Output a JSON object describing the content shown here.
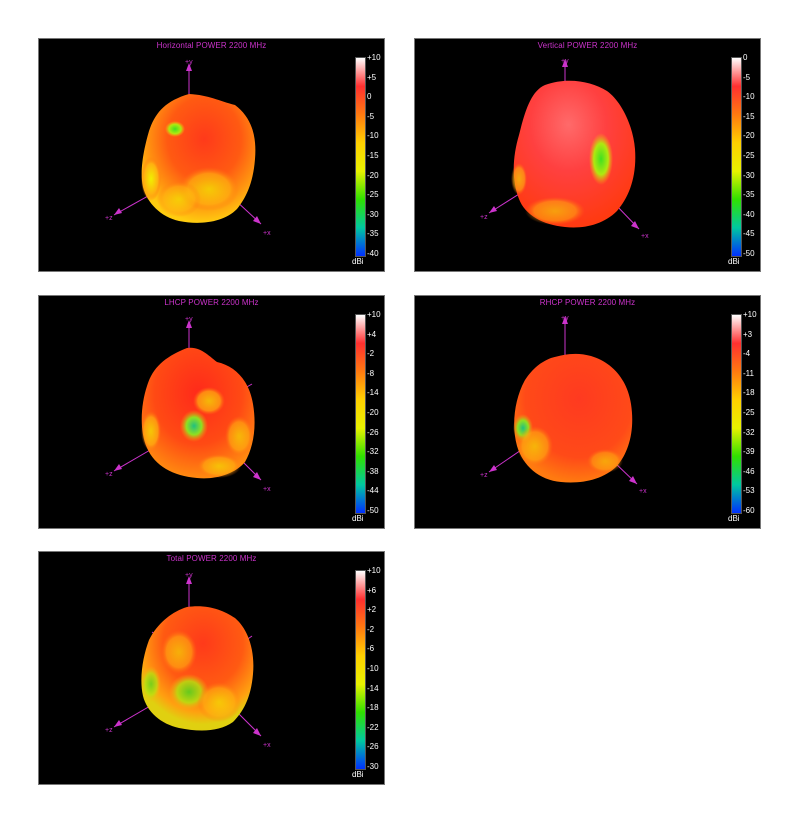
{
  "colors": {
    "scale": [
      "#ffffff",
      "#ff3030",
      "#ff7a10",
      "#ffd000",
      "#e8f200",
      "#30e000",
      "#00c8a0",
      "#0030ff"
    ],
    "title": "#cc33cc",
    "background": "#000000"
  },
  "axes": {
    "y": "+y",
    "z": "+z",
    "x": "+x"
  },
  "panels": [
    {
      "title": "Horizontal POWER 2200  MHz",
      "unit": "dBi",
      "ticks": [
        "+10",
        "+5",
        "0",
        "-5",
        "-10",
        "-15",
        "-20",
        "-25",
        "-30",
        "-35",
        "-40"
      ]
    },
    {
      "title": "Vertical POWER 2200  MHz",
      "unit": "dBi",
      "ticks": [
        "0",
        "-5",
        "-10",
        "-15",
        "-20",
        "-25",
        "-30",
        "-35",
        "-40",
        "-45",
        "-50"
      ]
    },
    {
      "title": "LHCP POWER 2200  MHz",
      "unit": "dBi",
      "ticks": [
        "+10",
        "+4",
        "-2",
        "-8",
        "-14",
        "-20",
        "-26",
        "-32",
        "-38",
        "-44",
        "-50"
      ]
    },
    {
      "title": "RHCP POWER 2200  MHz",
      "unit": "dBi",
      "ticks": [
        "+10",
        "+3",
        "-4",
        "-11",
        "-18",
        "-25",
        "-32",
        "-39",
        "-46",
        "-53",
        "-60"
      ]
    },
    {
      "title": "Total POWER 2200  MHz",
      "unit": "dBi",
      "ticks": [
        "+10",
        "+6",
        "+2",
        "-2",
        "-6",
        "-10",
        "-14",
        "-18",
        "-22",
        "-26",
        "-30"
      ]
    }
  ]
}
